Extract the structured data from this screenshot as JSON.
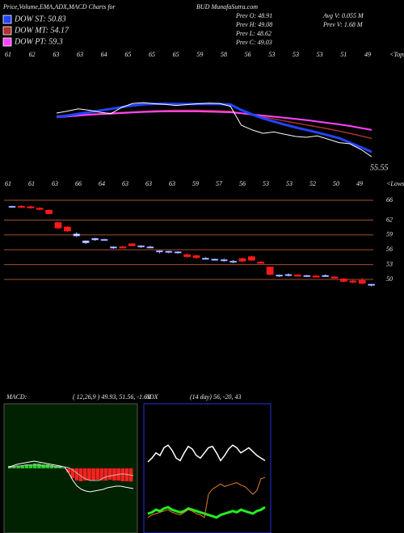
{
  "header": {
    "title": "Price,Volume,EMA,ADX,MACD Charts for",
    "site": "BUD MunafaSutra.com",
    "legend": [
      {
        "label": "DOW ST: 50.83",
        "color": "#2244ff"
      },
      {
        "label": "DOW MT: 54.17",
        "color": "#b03030"
      },
      {
        "label": "DOW PT: 59.3",
        "color": "#ff44ff"
      }
    ],
    "stats": [
      "Prev O: 48.91",
      "Prev H: 49.08",
      "Prev L: 48.62",
      "Prev C: 49.03"
    ],
    "stats2": [
      "Avg V: 0.055 M",
      "Prev V: 1.68 M"
    ]
  },
  "chart_data": [
    {
      "type": "line",
      "top_labels": [
        "61",
        "62",
        "63",
        "63",
        "64",
        "65",
        "65",
        "65",
        "59",
        "58",
        "56",
        "53",
        "53",
        "53",
        "51",
        "49"
      ],
      "right_label": "<Tops",
      "last_label": "55.55",
      "ylim": [
        43,
        86
      ],
      "series": [
        {
          "color": "#b03030",
          "values": [
            63.5,
            63.7,
            63.9,
            64.1,
            64.3,
            64.5,
            64.7,
            64.9,
            65.1,
            65.3,
            65.4,
            65.5,
            65.5,
            65.5,
            65.4,
            65.3,
            65.1,
            64.5,
            63.8,
            63.1,
            62.4,
            61.7,
            61.0,
            60.3,
            59.6,
            58.9,
            58.1,
            57.3,
            56.4,
            55.5
          ]
        },
        {
          "color": "#ff44ff",
          "values": [
            63.0,
            63.3,
            63.6,
            63.9,
            64.1,
            64.3,
            64.5,
            64.7,
            64.9,
            65.0,
            65.1,
            65.1,
            65.1,
            65.1,
            65.0,
            64.9,
            64.8,
            64.4,
            64.0,
            63.6,
            63.2,
            62.8,
            62.4,
            62.0,
            61.5,
            61.0,
            60.5,
            59.9,
            59.2,
            58.5
          ]
        },
        {
          "color": "#2244ff",
          "values": [
            63.1,
            63.6,
            64.2,
            64.8,
            65.4,
            66.0,
            66.6,
            67.2,
            67.6,
            67.8,
            67.8,
            67.7,
            67.7,
            67.7,
            67.7,
            67.7,
            67.5,
            65.6,
            64.0,
            62.6,
            61.5,
            60.4,
            59.4,
            58.5,
            57.6,
            56.6,
            55.6,
            54.0,
            52.4,
            50.7
          ]
        },
        {
          "color": "#ffffff",
          "values": [
            64.5,
            65.2,
            66.0,
            65.5,
            64.8,
            64.3,
            66.5,
            67.9,
            68.2,
            67.8,
            67.6,
            67.2,
            67.5,
            67.8,
            68.0,
            67.9,
            66.9,
            60.2,
            58.5,
            57.3,
            57.8,
            57.0,
            56.2,
            55.9,
            56.4,
            55.2,
            54.0,
            53.6,
            51.6,
            49.0
          ]
        }
      ]
    },
    {
      "type": "candlestick",
      "top_labels": [
        "61",
        "61",
        "63",
        "66",
        "64",
        "63",
        "63",
        "63",
        "59",
        "57",
        "56",
        "53",
        "53",
        "52",
        "50",
        "49"
      ],
      "right_label": "<Lows",
      "ylim": [
        28,
        70
      ],
      "yticks": [
        66,
        62,
        59,
        56,
        53,
        50
      ],
      "grid_color": "#a0522d",
      "up_color": "#e8e8ff",
      "down_color": "#ff1a1a",
      "open": [
        64.6,
        64.8,
        64.7,
        64.4,
        64.0,
        61.5,
        60.6,
        58.8,
        57.4,
        58.0,
        58.0,
        56.5,
        56.6,
        57.2,
        56.6,
        56.5,
        55.6,
        55.6,
        55.4,
        55.0,
        54.8,
        54.2,
        54.0,
        53.9,
        53.6,
        54.2,
        54.6,
        53.5,
        52.5,
        50.7,
        50.8,
        50.9,
        50.6,
        50.7,
        50.7,
        50.5,
        50.1,
        49.7,
        49.8,
        48.91
      ],
      "high": [
        64.9,
        65.0,
        64.9,
        64.6,
        64.1,
        61.6,
        60.8,
        59.5,
        57.9,
        58.4,
        58.2,
        56.7,
        56.8,
        57.3,
        56.9,
        56.8,
        55.9,
        55.8,
        55.7,
        55.3,
        55.0,
        54.5,
        54.2,
        54.2,
        53.9,
        54.4,
        54.8,
        53.7,
        52.6,
        51.0,
        51.2,
        51.1,
        50.9,
        50.9,
        51.0,
        50.7,
        50.3,
        50.0,
        50.3,
        49.08
      ],
      "low": [
        64.5,
        64.6,
        64.3,
        64.0,
        63.2,
        60.2,
        59.6,
        58.6,
        57.2,
        57.8,
        57.9,
        56.2,
        56.3,
        56.7,
        56.4,
        56.3,
        55.3,
        55.3,
        55.2,
        54.4,
        54.2,
        54.0,
        53.8,
        53.6,
        53.3,
        53.5,
        53.7,
        53.2,
        50.8,
        50.5,
        50.6,
        50.6,
        50.5,
        50.4,
        50.5,
        50.2,
        49.4,
        49.2,
        49.0,
        48.62
      ],
      "close": [
        64.8,
        64.7,
        64.5,
        64.2,
        63.3,
        60.4,
        59.8,
        59.2,
        57.8,
        58.3,
        58.1,
        56.6,
        56.5,
        56.8,
        56.8,
        56.6,
        55.8,
        55.7,
        55.6,
        54.6,
        54.4,
        54.3,
        54.1,
        54.0,
        53.7,
        53.7,
        53.9,
        53.4,
        51.0,
        50.9,
        51.0,
        50.8,
        50.8,
        50.5,
        50.8,
        50.4,
        49.6,
        49.5,
        49.2,
        49.03
      ]
    },
    {
      "type": "macd",
      "title": "MACD:",
      "subtitle": "( 12,26,9 ) 49.93, 51.56, -1.63",
      "ylim": [
        -8,
        8
      ],
      "background": "#002200",
      "histogram": {
        "up_color": "#22cc22",
        "down_color": "#ff2020",
        "values": [
          0.1,
          0.2,
          0.3,
          0.4,
          0.5,
          0.5,
          0.6,
          0.6,
          0.5,
          0.5,
          0.4,
          0.3,
          0.2,
          0.1,
          -0.5,
          -1.2,
          -1.5,
          -1.6,
          -1.5,
          -1.5,
          -1.5,
          -1.4,
          -1.5,
          -1.5,
          -1.4,
          -1.5,
          -1.5,
          -1.6,
          -1.6,
          -1.63
        ]
      },
      "series": [
        {
          "color": "#ffffff",
          "values": [
            0.2,
            0.3,
            0.5,
            0.6,
            0.7,
            0.8,
            0.9,
            0.8,
            0.7,
            0.6,
            0.5,
            0.4,
            0.3,
            0.2,
            -0.5,
            -1.5,
            -2.2,
            -2.6,
            -2.8,
            -2.9,
            -2.8,
            -2.7,
            -2.6,
            -2.4,
            -2.3,
            -2.2,
            -2.2,
            -2.3,
            -2.4,
            -2.5
          ]
        },
        {
          "color": "#bbbbbb",
          "values": [
            0.1,
            0.2,
            0.3,
            0.3,
            0.4,
            0.4,
            0.4,
            0.4,
            0.3,
            0.3,
            0.3,
            0.2,
            0.2,
            0.2,
            0.1,
            -0.2,
            -0.6,
            -1.0,
            -1.3,
            -1.5,
            -1.5,
            -1.5,
            -1.2,
            -1.0,
            -0.9,
            -0.8,
            -0.7,
            -0.7,
            -0.8,
            -0.9
          ]
        }
      ]
    },
    {
      "type": "adx",
      "title": "ADX",
      "subtitle": "(14 day) 56, -20, 43",
      "ylim": [
        0,
        100
      ],
      "border_color": "#2233dd",
      "series": [
        {
          "color": "#ffffff",
          "values": [
            55,
            58,
            62,
            60,
            66,
            68,
            64,
            58,
            56,
            62,
            67,
            65,
            60,
            58,
            62,
            66,
            67,
            62,
            56,
            60,
            65,
            68,
            66,
            62,
            64,
            66,
            63,
            60,
            58,
            56
          ]
        },
        {
          "color": "#22ee22",
          "values": [
            15,
            16,
            18,
            17,
            19,
            20,
            18,
            17,
            16,
            17,
            19,
            18,
            17,
            16,
            15,
            14,
            13,
            12,
            14,
            15,
            16,
            17,
            16,
            18,
            17,
            16,
            15,
            17,
            18,
            20
          ]
        },
        {
          "color": "#e08020",
          "values": [
            12,
            14,
            15,
            16,
            17,
            18,
            16,
            15,
            14,
            16,
            18,
            17,
            15,
            14,
            12,
            30,
            34,
            36,
            38,
            36,
            37,
            38,
            39,
            37,
            36,
            33,
            30,
            33,
            42,
            43
          ]
        }
      ]
    }
  ]
}
